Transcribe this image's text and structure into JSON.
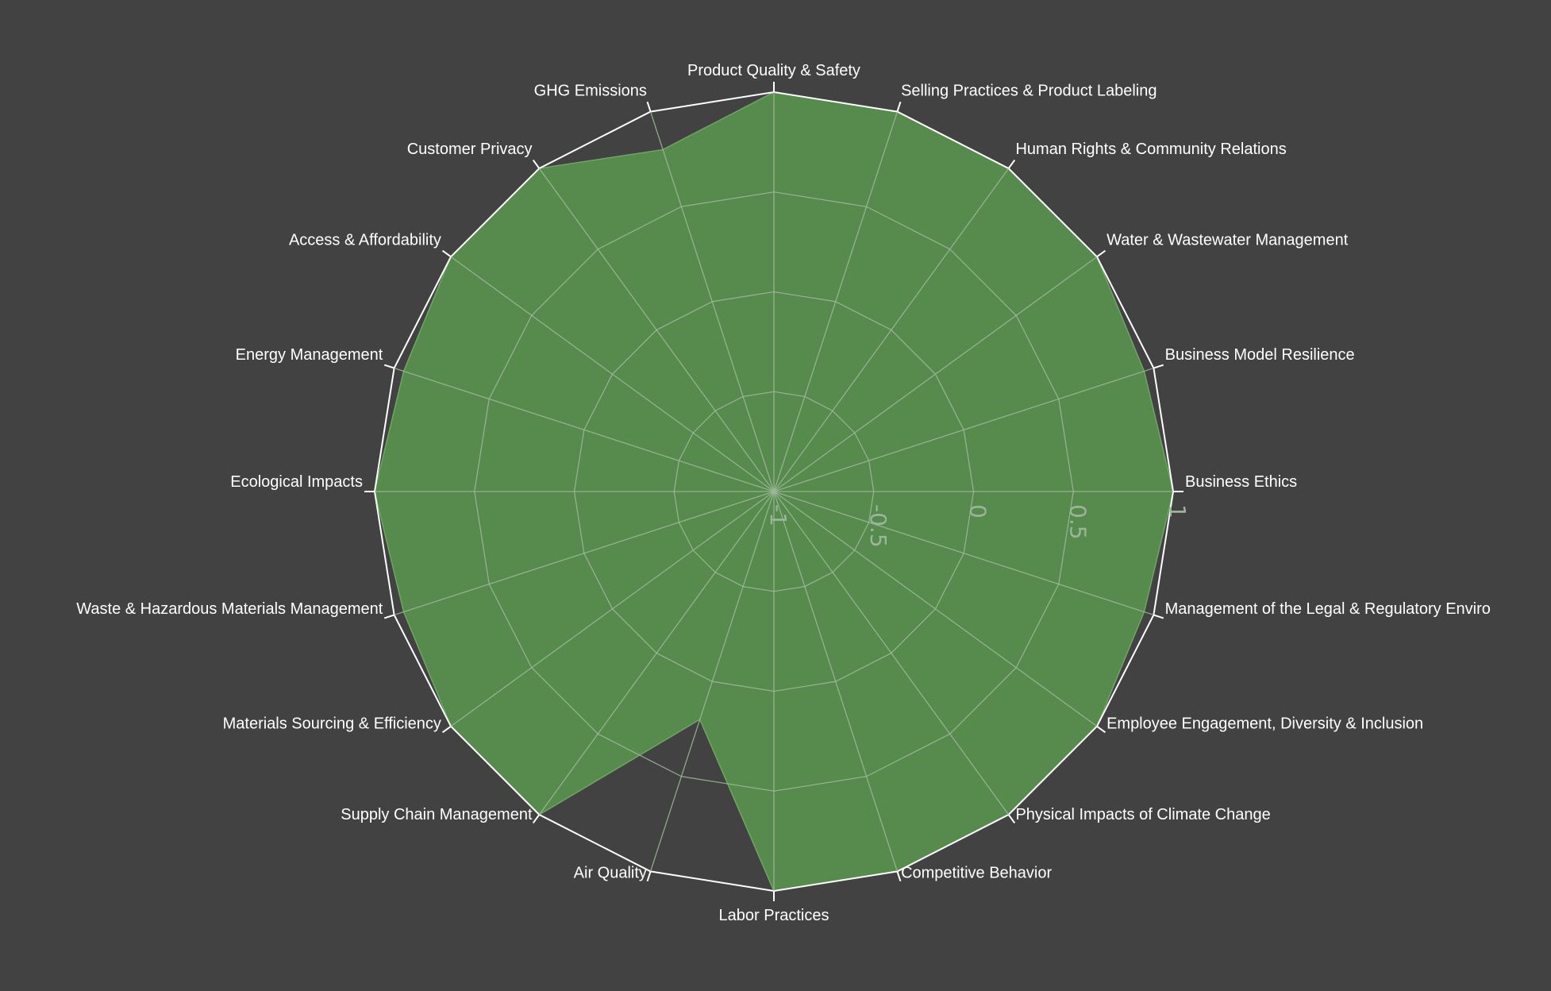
{
  "chart_data": {
    "type": "radar",
    "categories": [
      "Business Ethics",
      "Business Model Resilience",
      "Water & Wastewater Management",
      "Human Rights & Community Relations",
      "Selling Practices & Product Labeling",
      "Product Quality & Safety",
      "GHG Emissions",
      "Customer Privacy",
      "Access & Affordability",
      "Energy Management",
      "Ecological Impacts",
      "Waste & Hazardous Materials Management",
      "Materials Sourcing & Efficiency",
      "Supply Chain Management",
      "Air Quality",
      "Labor Practices",
      "Competitive Behavior",
      "Physical Impacts of Climate Change",
      "Employee Engagement, Diversity & Inclusion",
      "Management of the Legal & Regulatory Enviro"
    ],
    "series": [
      {
        "values": [
          1,
          0.95,
          1,
          1,
          1,
          1,
          0.8,
          1,
          1,
          0.95,
          1,
          0.95,
          1,
          1,
          0.2,
          1,
          1,
          1,
          1,
          0.95
        ]
      }
    ],
    "radial_range": [
      -1,
      1
    ],
    "radial_ticks": [
      "-1",
      "-0.5",
      "0",
      "0.5",
      "1"
    ],
    "tick_values": [
      -1,
      -0.5,
      0,
      0.5,
      1
    ],
    "fill_color": "#578a4d",
    "grid_color": "#9db99a",
    "outer_color": "#ffffff",
    "background": "#424242"
  }
}
